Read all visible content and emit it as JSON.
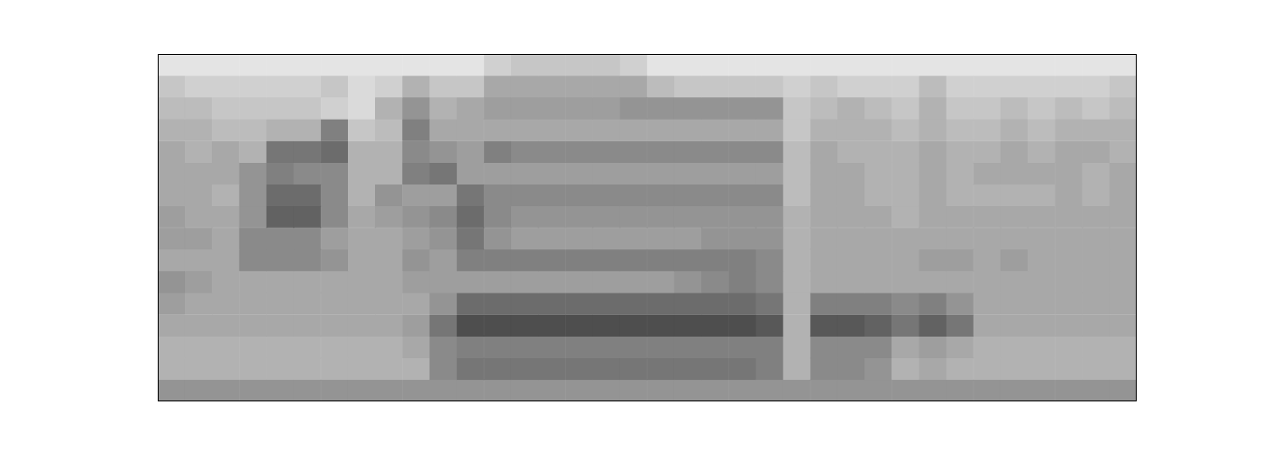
{
  "chart_data": {
    "type": "heatmap",
    "tick_labels": false,
    "grid": false,
    "xlim": [
      0,
      36
    ],
    "ylim": [
      0,
      16
    ],
    "cells": [
      [
        0.05,
        0.05,
        0.05,
        0.05,
        0.05,
        0.05,
        0.05,
        0.05,
        0.05,
        0.05,
        0.05,
        0.05,
        0.15,
        0.2,
        0.2,
        0.2,
        0.2,
        0.15,
        0.05,
        0.05,
        0.05,
        0.05,
        0.05,
        0.05,
        0.05,
        0.05,
        0.05,
        0.05,
        0.05,
        0.05,
        0.05,
        0.05,
        0.05,
        0.05,
        0.05,
        0.05
      ],
      [
        0.2,
        0.15,
        0.15,
        0.15,
        0.15,
        0.15,
        0.2,
        0.1,
        0.15,
        0.3,
        0.2,
        0.2,
        0.35,
        0.35,
        0.35,
        0.35,
        0.35,
        0.35,
        0.25,
        0.2,
        0.2,
        0.2,
        0.2,
        0.15,
        0.2,
        0.15,
        0.15,
        0.15,
        0.25,
        0.15,
        0.15,
        0.15,
        0.15,
        0.15,
        0.15,
        0.2
      ],
      [
        0.25,
        0.25,
        0.2,
        0.2,
        0.2,
        0.2,
        0.15,
        0.1,
        0.3,
        0.45,
        0.3,
        0.35,
        0.4,
        0.4,
        0.4,
        0.4,
        0.4,
        0.45,
        0.45,
        0.45,
        0.45,
        0.45,
        0.45,
        0.2,
        0.25,
        0.3,
        0.25,
        0.2,
        0.3,
        0.2,
        0.2,
        0.25,
        0.2,
        0.25,
        0.2,
        0.25
      ],
      [
        0.3,
        0.3,
        0.25,
        0.25,
        0.3,
        0.3,
        0.55,
        0.2,
        0.25,
        0.55,
        0.35,
        0.35,
        0.35,
        0.35,
        0.35,
        0.35,
        0.35,
        0.35,
        0.35,
        0.35,
        0.35,
        0.35,
        0.35,
        0.2,
        0.3,
        0.3,
        0.3,
        0.25,
        0.3,
        0.25,
        0.25,
        0.3,
        0.25,
        0.3,
        0.3,
        0.3
      ],
      [
        0.35,
        0.3,
        0.35,
        0.3,
        0.6,
        0.6,
        0.65,
        0.3,
        0.3,
        0.5,
        0.45,
        0.4,
        0.55,
        0.5,
        0.5,
        0.5,
        0.5,
        0.5,
        0.5,
        0.5,
        0.5,
        0.5,
        0.5,
        0.25,
        0.35,
        0.3,
        0.3,
        0.3,
        0.35,
        0.3,
        0.3,
        0.35,
        0.3,
        0.35,
        0.35,
        0.3
      ],
      [
        0.35,
        0.35,
        0.35,
        0.45,
        0.55,
        0.5,
        0.5,
        0.3,
        0.3,
        0.55,
        0.6,
        0.4,
        0.4,
        0.4,
        0.4,
        0.4,
        0.4,
        0.4,
        0.4,
        0.4,
        0.4,
        0.4,
        0.4,
        0.25,
        0.35,
        0.35,
        0.3,
        0.3,
        0.35,
        0.3,
        0.35,
        0.35,
        0.35,
        0.35,
        0.3,
        0.35
      ],
      [
        0.35,
        0.35,
        0.3,
        0.45,
        0.65,
        0.65,
        0.5,
        0.3,
        0.45,
        0.4,
        0.4,
        0.6,
        0.5,
        0.5,
        0.5,
        0.5,
        0.5,
        0.5,
        0.5,
        0.5,
        0.5,
        0.5,
        0.5,
        0.25,
        0.35,
        0.35,
        0.3,
        0.3,
        0.35,
        0.3,
        0.3,
        0.3,
        0.3,
        0.35,
        0.3,
        0.35
      ],
      [
        0.4,
        0.35,
        0.35,
        0.45,
        0.7,
        0.7,
        0.5,
        0.35,
        0.4,
        0.45,
        0.5,
        0.65,
        0.5,
        0.45,
        0.45,
        0.45,
        0.45,
        0.45,
        0.45,
        0.45,
        0.45,
        0.45,
        0.45,
        0.3,
        0.35,
        0.35,
        0.35,
        0.3,
        0.35,
        0.35,
        0.35,
        0.35,
        0.35,
        0.35,
        0.35,
        0.35
      ],
      [
        0.4,
        0.4,
        0.35,
        0.5,
        0.5,
        0.5,
        0.4,
        0.35,
        0.35,
        0.4,
        0.45,
        0.6,
        0.45,
        0.4,
        0.4,
        0.4,
        0.4,
        0.4,
        0.4,
        0.4,
        0.45,
        0.45,
        0.45,
        0.3,
        0.35,
        0.35,
        0.35,
        0.35,
        0.35,
        0.35,
        0.35,
        0.35,
        0.35,
        0.35,
        0.35,
        0.35
      ],
      [
        0.35,
        0.35,
        0.35,
        0.5,
        0.5,
        0.5,
        0.45,
        0.35,
        0.35,
        0.45,
        0.4,
        0.55,
        0.55,
        0.55,
        0.55,
        0.55,
        0.55,
        0.55,
        0.55,
        0.55,
        0.55,
        0.55,
        0.5,
        0.3,
        0.35,
        0.35,
        0.35,
        0.35,
        0.4,
        0.4,
        0.35,
        0.4,
        0.35,
        0.35,
        0.35,
        0.35
      ],
      [
        0.45,
        0.4,
        0.35,
        0.35,
        0.35,
        0.35,
        0.35,
        0.35,
        0.35,
        0.4,
        0.4,
        0.4,
        0.4,
        0.4,
        0.4,
        0.4,
        0.4,
        0.4,
        0.4,
        0.45,
        0.5,
        0.55,
        0.5,
        0.3,
        0.35,
        0.35,
        0.35,
        0.35,
        0.35,
        0.35,
        0.35,
        0.35,
        0.35,
        0.35,
        0.35,
        0.35
      ],
      [
        0.4,
        0.35,
        0.35,
        0.35,
        0.35,
        0.35,
        0.35,
        0.35,
        0.35,
        0.35,
        0.45,
        0.65,
        0.65,
        0.65,
        0.65,
        0.65,
        0.65,
        0.65,
        0.65,
        0.65,
        0.65,
        0.65,
        0.6,
        0.3,
        0.55,
        0.55,
        0.55,
        0.5,
        0.55,
        0.45,
        0.35,
        0.35,
        0.35,
        0.35,
        0.35,
        0.35
      ],
      [
        0.35,
        0.35,
        0.35,
        0.35,
        0.35,
        0.35,
        0.35,
        0.35,
        0.35,
        0.4,
        0.6,
        0.8,
        0.8,
        0.8,
        0.8,
        0.8,
        0.8,
        0.8,
        0.8,
        0.8,
        0.8,
        0.8,
        0.75,
        0.3,
        0.75,
        0.75,
        0.7,
        0.6,
        0.7,
        0.6,
        0.35,
        0.35,
        0.35,
        0.35,
        0.35,
        0.35
      ],
      [
        0.3,
        0.3,
        0.3,
        0.3,
        0.3,
        0.3,
        0.3,
        0.3,
        0.3,
        0.35,
        0.5,
        0.55,
        0.55,
        0.55,
        0.55,
        0.55,
        0.55,
        0.55,
        0.55,
        0.55,
        0.55,
        0.55,
        0.55,
        0.3,
        0.5,
        0.5,
        0.5,
        0.35,
        0.4,
        0.35,
        0.3,
        0.3,
        0.3,
        0.3,
        0.3,
        0.3
      ],
      [
        0.3,
        0.3,
        0.3,
        0.3,
        0.3,
        0.3,
        0.3,
        0.3,
        0.3,
        0.3,
        0.5,
        0.6,
        0.6,
        0.6,
        0.6,
        0.6,
        0.6,
        0.6,
        0.6,
        0.6,
        0.6,
        0.6,
        0.55,
        0.3,
        0.5,
        0.5,
        0.45,
        0.3,
        0.35,
        0.3,
        0.3,
        0.3,
        0.3,
        0.3,
        0.3,
        0.3
      ],
      [
        0.45,
        0.45,
        0.45,
        0.45,
        0.45,
        0.45,
        0.45,
        0.45,
        0.45,
        0.45,
        0.45,
        0.45,
        0.45,
        0.45,
        0.45,
        0.45,
        0.45,
        0.45,
        0.45,
        0.45,
        0.45,
        0.45,
        0.45,
        0.45,
        0.45,
        0.45,
        0.45,
        0.45,
        0.45,
        0.45,
        0.45,
        0.45,
        0.45,
        0.45,
        0.45,
        0.45
      ]
    ]
  }
}
